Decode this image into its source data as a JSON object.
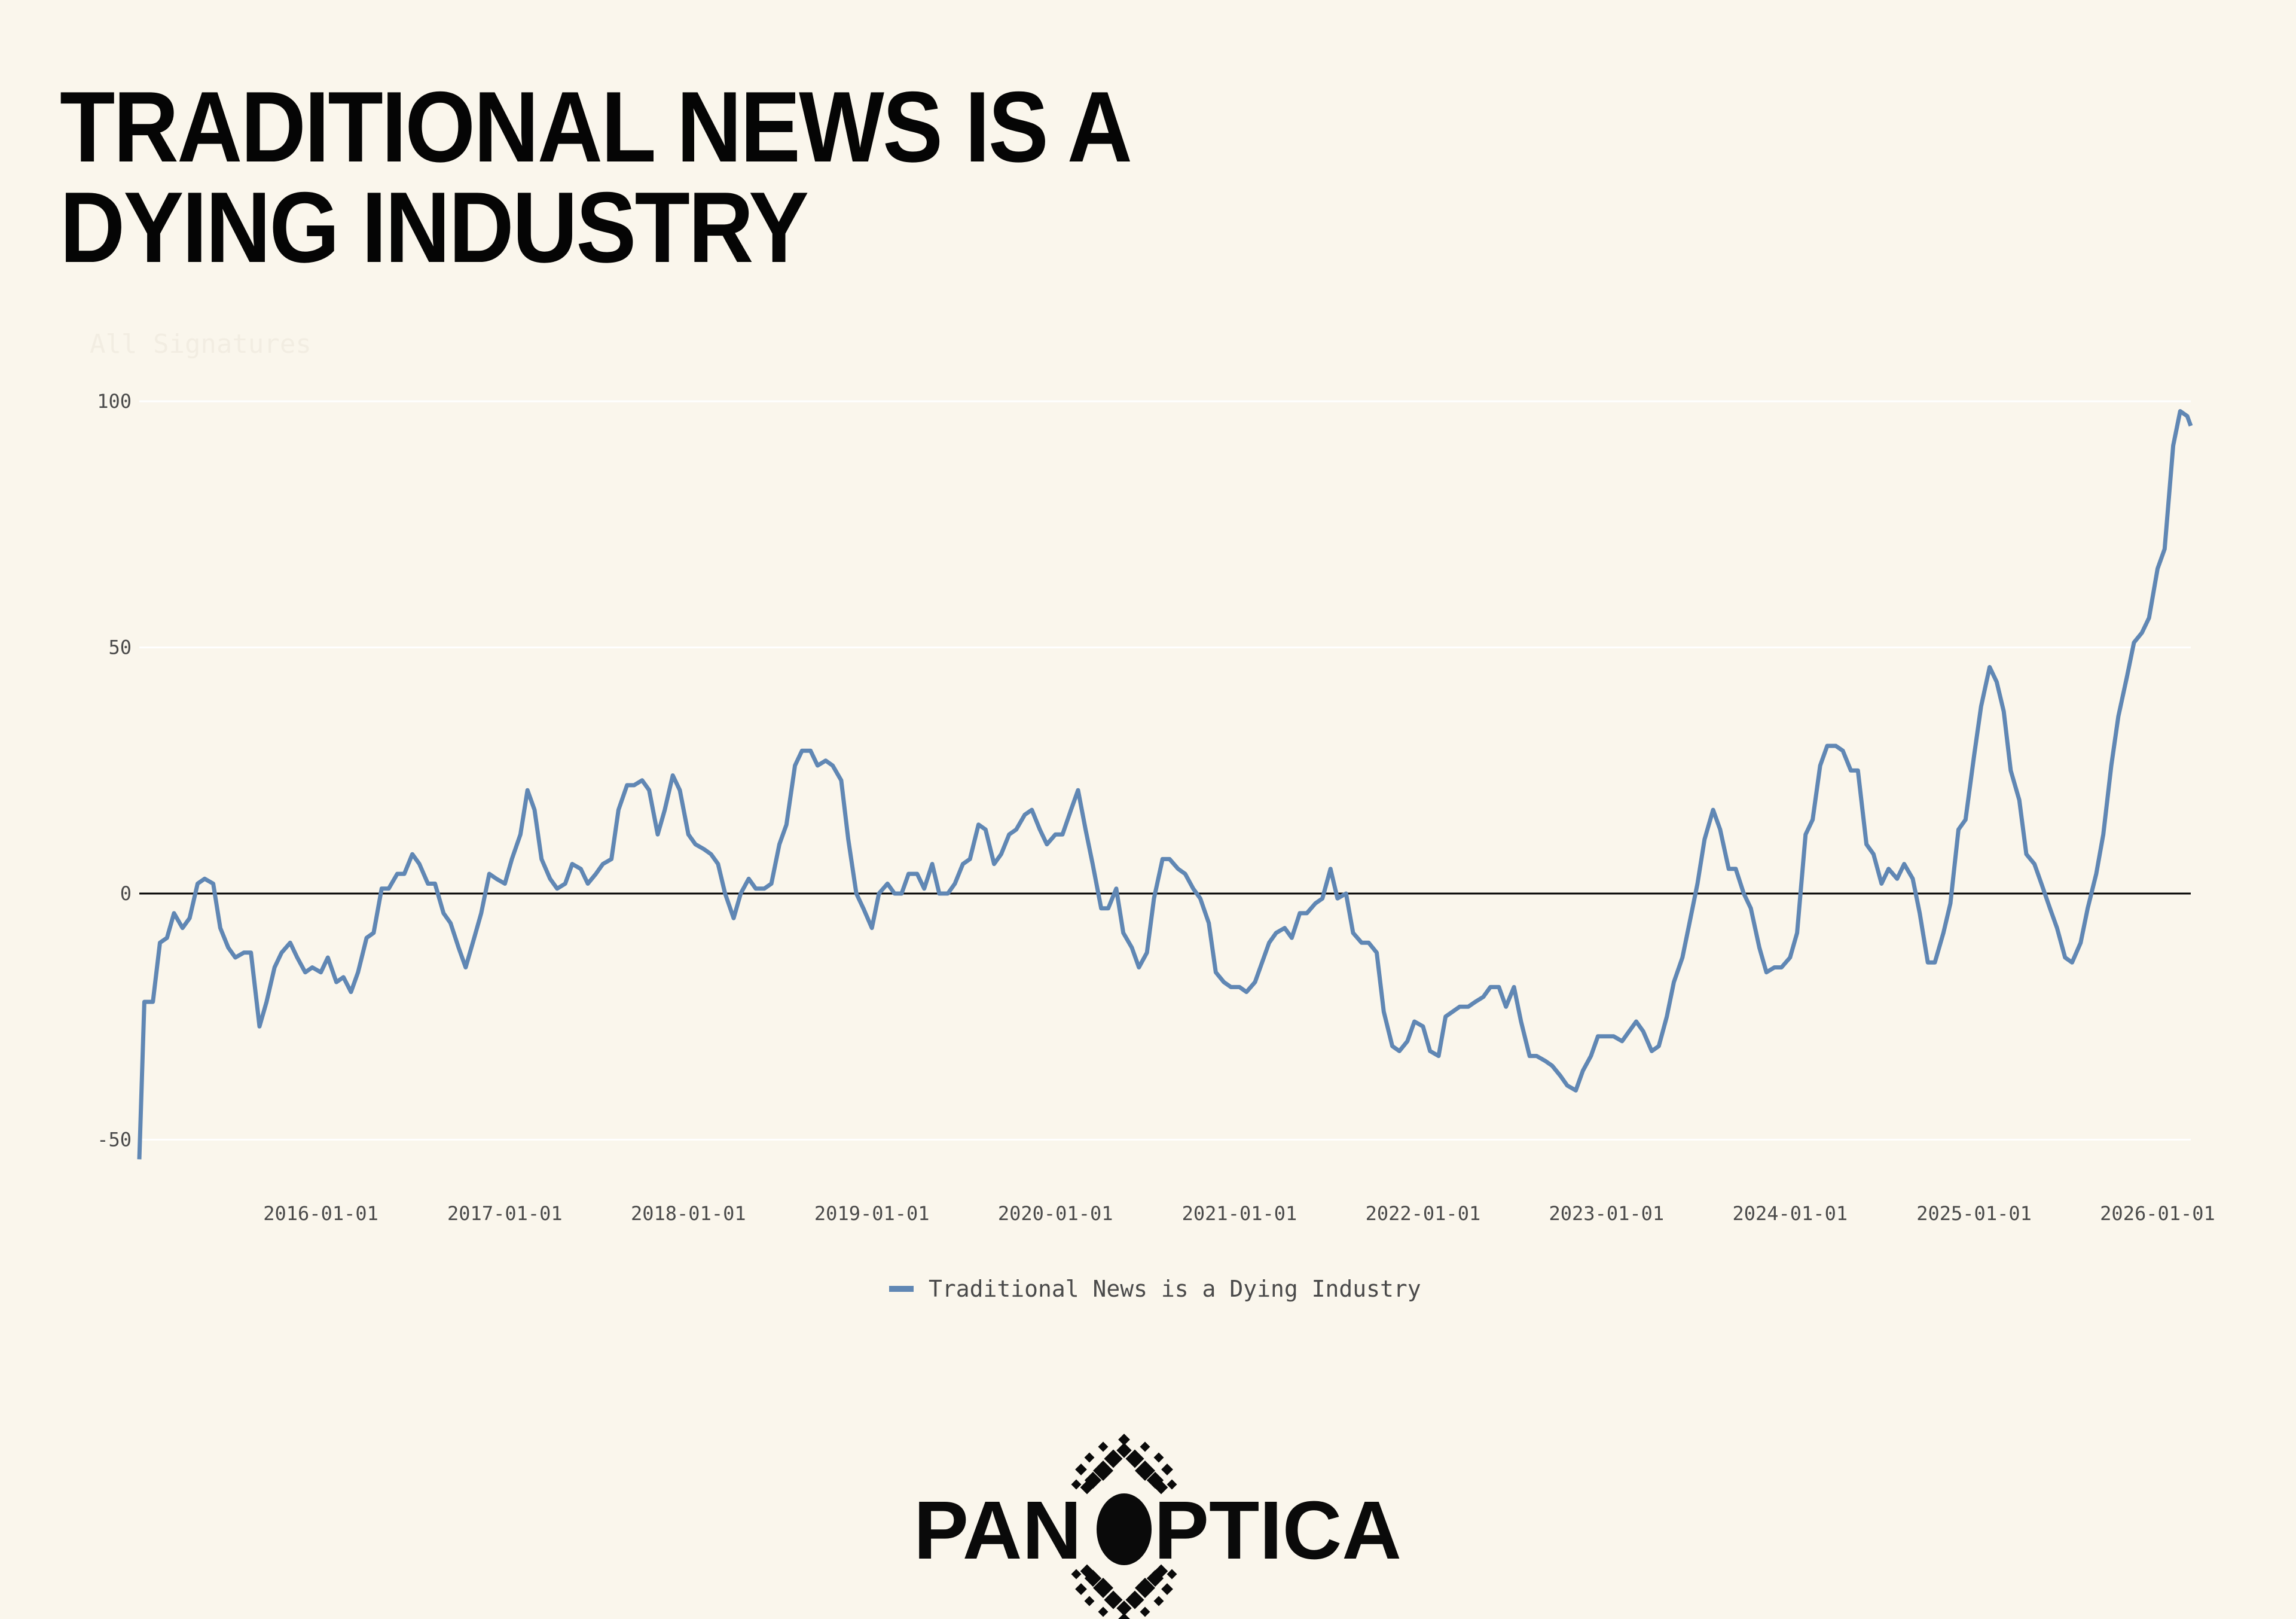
{
  "title_lines": [
    "TRADITIONAL NEWS IS A",
    "DYING INDUSTRY"
  ],
  "subtitle": "All Signatures",
  "logo_text": "PANOPTICA",
  "colors": {
    "background": "#faf6ec",
    "series": "#6087b4",
    "zero_line": "#000000",
    "grid": "#ffffff"
  },
  "chart_data": {
    "type": "line",
    "title": "TRADITIONAL NEWS IS A DYING INDUSTRY",
    "xlabel": "",
    "ylabel": "",
    "ylim": [
      -55,
      100
    ],
    "yticks": [
      100,
      50,
      0,
      -50
    ],
    "ytick_labels": [
      "100",
      "50",
      "0",
      "-50"
    ],
    "xticks": [
      "2016-01-01",
      "2017-01-01",
      "2018-01-01",
      "2019-01-01",
      "2020-01-01",
      "2021-01-01",
      "2022-01-01",
      "2023-01-01",
      "2024-01-01",
      "2025-01-01",
      "2026-01-01"
    ],
    "grid": "horizontal",
    "zero_line": true,
    "legend": "bottom-center",
    "series": [
      {
        "name": "Traditional News is a Dying Industry",
        "color": "#6087b4",
        "points": [
          [
            "2015-01-05",
            -54
          ],
          [
            "2015-01-15",
            -22
          ],
          [
            "2015-02-01",
            -22
          ],
          [
            "2015-02-15",
            -10
          ],
          [
            "2015-03-01",
            -9
          ],
          [
            "2015-03-15",
            -4
          ],
          [
            "2015-04-01",
            -7
          ],
          [
            "2015-04-15",
            -5
          ],
          [
            "2015-05-01",
            2
          ],
          [
            "2015-05-15",
            3
          ],
          [
            "2015-06-01",
            2
          ],
          [
            "2015-06-15",
            -7
          ],
          [
            "2015-07-01",
            -11
          ],
          [
            "2015-07-15",
            -13
          ],
          [
            "2015-08-01",
            -12
          ],
          [
            "2015-08-15",
            -12
          ],
          [
            "2015-09-01",
            -27
          ],
          [
            "2015-09-15",
            -22
          ],
          [
            "2015-10-01",
            -15
          ],
          [
            "2015-10-15",
            -12
          ],
          [
            "2015-11-01",
            -10
          ],
          [
            "2015-11-15",
            -13
          ],
          [
            "2015-12-01",
            -16
          ],
          [
            "2015-12-15",
            -15
          ],
          [
            "2016-01-01",
            -16
          ],
          [
            "2016-01-15",
            -13
          ],
          [
            "2016-02-01",
            -18
          ],
          [
            "2016-02-15",
            -17
          ],
          [
            "2016-03-01",
            -20
          ],
          [
            "2016-03-15",
            -16
          ],
          [
            "2016-04-01",
            -9
          ],
          [
            "2016-04-15",
            -8
          ],
          [
            "2016-05-01",
            1
          ],
          [
            "2016-05-15",
            1
          ],
          [
            "2016-06-01",
            4
          ],
          [
            "2016-06-15",
            4
          ],
          [
            "2016-07-01",
            8
          ],
          [
            "2016-07-15",
            6
          ],
          [
            "2016-08-01",
            2
          ],
          [
            "2016-08-15",
            2
          ],
          [
            "2016-09-01",
            -4
          ],
          [
            "2016-09-15",
            -6
          ],
          [
            "2016-10-01",
            -11
          ],
          [
            "2016-10-15",
            -15
          ],
          [
            "2016-11-01",
            -9
          ],
          [
            "2016-11-15",
            -4
          ],
          [
            "2016-12-01",
            4
          ],
          [
            "2016-12-15",
            3
          ],
          [
            "2017-01-01",
            2
          ],
          [
            "2017-01-15",
            7
          ],
          [
            "2017-02-01",
            12
          ],
          [
            "2017-02-15",
            21
          ],
          [
            "2017-03-01",
            17
          ],
          [
            "2017-03-15",
            7
          ],
          [
            "2017-04-01",
            3
          ],
          [
            "2017-04-15",
            1
          ],
          [
            "2017-05-01",
            2
          ],
          [
            "2017-05-15",
            6
          ],
          [
            "2017-06-01",
            5
          ],
          [
            "2017-06-15",
            2
          ],
          [
            "2017-07-01",
            4
          ],
          [
            "2017-07-15",
            6
          ],
          [
            "2017-08-01",
            7
          ],
          [
            "2017-08-15",
            17
          ],
          [
            "2017-09-01",
            22
          ],
          [
            "2017-09-15",
            22
          ],
          [
            "2017-10-01",
            23
          ],
          [
            "2017-10-15",
            21
          ],
          [
            "2017-11-01",
            12
          ],
          [
            "2017-11-15",
            17
          ],
          [
            "2017-12-01",
            24
          ],
          [
            "2017-12-15",
            21
          ],
          [
            "2018-01-01",
            12
          ],
          [
            "2018-01-15",
            10
          ],
          [
            "2018-02-01",
            9
          ],
          [
            "2018-02-15",
            8
          ],
          [
            "2018-03-01",
            6
          ],
          [
            "2018-03-15",
            0
          ],
          [
            "2018-04-01",
            -5
          ],
          [
            "2018-04-15",
            0
          ],
          [
            "2018-05-01",
            3
          ],
          [
            "2018-05-15",
            1
          ],
          [
            "2018-06-01",
            1
          ],
          [
            "2018-06-15",
            2
          ],
          [
            "2018-07-01",
            10
          ],
          [
            "2018-07-15",
            14
          ],
          [
            "2018-08-01",
            26
          ],
          [
            "2018-08-15",
            29
          ],
          [
            "2018-09-01",
            29
          ],
          [
            "2018-09-15",
            26
          ],
          [
            "2018-10-01",
            27
          ],
          [
            "2018-10-15",
            26
          ],
          [
            "2018-11-01",
            23
          ],
          [
            "2018-11-15",
            11
          ],
          [
            "2018-12-01",
            0
          ],
          [
            "2018-12-15",
            -3
          ],
          [
            "2019-01-01",
            -7
          ],
          [
            "2019-01-15",
            0
          ],
          [
            "2019-02-01",
            2
          ],
          [
            "2019-02-15",
            0
          ],
          [
            "2019-03-01",
            0
          ],
          [
            "2019-03-15",
            4
          ],
          [
            "2019-04-01",
            4
          ],
          [
            "2019-04-15",
            1
          ],
          [
            "2019-05-01",
            6
          ],
          [
            "2019-05-15",
            0
          ],
          [
            "2019-06-01",
            0
          ],
          [
            "2019-06-15",
            2
          ],
          [
            "2019-07-01",
            6
          ],
          [
            "2019-07-15",
            7
          ],
          [
            "2019-08-01",
            14
          ],
          [
            "2019-08-15",
            13
          ],
          [
            "2019-09-01",
            6
          ],
          [
            "2019-09-15",
            8
          ],
          [
            "2019-10-01",
            12
          ],
          [
            "2019-10-15",
            13
          ],
          [
            "2019-11-01",
            16
          ],
          [
            "2019-11-15",
            17
          ],
          [
            "2019-12-01",
            13
          ],
          [
            "2019-12-15",
            10
          ],
          [
            "2020-01-01",
            12
          ],
          [
            "2020-01-15",
            12
          ],
          [
            "2020-02-01",
            17
          ],
          [
            "2020-02-15",
            21
          ],
          [
            "2020-03-01",
            13
          ],
          [
            "2020-03-15",
            6
          ],
          [
            "2020-04-01",
            -3
          ],
          [
            "2020-04-15",
            -3
          ],
          [
            "2020-05-01",
            1
          ],
          [
            "2020-05-15",
            -8
          ],
          [
            "2020-06-01",
            -11
          ],
          [
            "2020-06-15",
            -15
          ],
          [
            "2020-07-01",
            -12
          ],
          [
            "2020-07-15",
            -1
          ],
          [
            "2020-08-01",
            7
          ],
          [
            "2020-08-15",
            7
          ],
          [
            "2020-09-01",
            5
          ],
          [
            "2020-09-15",
            4
          ],
          [
            "2020-10-01",
            1
          ],
          [
            "2020-10-15",
            -1
          ],
          [
            "2020-11-01",
            -6
          ],
          [
            "2020-11-15",
            -16
          ],
          [
            "2020-12-01",
            -18
          ],
          [
            "2020-12-15",
            -19
          ],
          [
            "2021-01-01",
            -19
          ],
          [
            "2021-01-15",
            -20
          ],
          [
            "2021-02-01",
            -18
          ],
          [
            "2021-02-15",
            -14
          ],
          [
            "2021-03-01",
            -10
          ],
          [
            "2021-03-15",
            -8
          ],
          [
            "2021-04-01",
            -7
          ],
          [
            "2021-04-15",
            -9
          ],
          [
            "2021-05-01",
            -4
          ],
          [
            "2021-05-15",
            -4
          ],
          [
            "2021-06-01",
            -2
          ],
          [
            "2021-06-15",
            -1
          ],
          [
            "2021-07-01",
            5
          ],
          [
            "2021-07-15",
            -1
          ],
          [
            "2021-08-01",
            0
          ],
          [
            "2021-08-15",
            -8
          ],
          [
            "2021-09-01",
            -10
          ],
          [
            "2021-09-15",
            -10
          ],
          [
            "2021-10-01",
            -12
          ],
          [
            "2021-10-15",
            -24
          ],
          [
            "2021-11-01",
            -31
          ],
          [
            "2021-11-15",
            -32
          ],
          [
            "2021-12-01",
            -30
          ],
          [
            "2021-12-15",
            -26
          ],
          [
            "2022-01-01",
            -27
          ],
          [
            "2022-01-15",
            -32
          ],
          [
            "2022-02-01",
            -33
          ],
          [
            "2022-02-15",
            -25
          ],
          [
            "2022-03-01",
            -24
          ],
          [
            "2022-03-15",
            -23
          ],
          [
            "2022-04-01",
            -23
          ],
          [
            "2022-04-15",
            -22
          ],
          [
            "2022-05-01",
            -21
          ],
          [
            "2022-05-15",
            -19
          ],
          [
            "2022-06-01",
            -19
          ],
          [
            "2022-06-15",
            -23
          ],
          [
            "2022-07-01",
            -19
          ],
          [
            "2022-07-15",
            -26
          ],
          [
            "2022-08-01",
            -33
          ],
          [
            "2022-08-15",
            -33
          ],
          [
            "2022-09-01",
            -34
          ],
          [
            "2022-09-15",
            -35
          ],
          [
            "2022-10-01",
            -37
          ],
          [
            "2022-10-15",
            -39
          ],
          [
            "2022-11-01",
            -40
          ],
          [
            "2022-11-15",
            -36
          ],
          [
            "2022-12-01",
            -33
          ],
          [
            "2022-12-15",
            -29
          ],
          [
            "2023-01-01",
            -29
          ],
          [
            "2023-01-15",
            -29
          ],
          [
            "2023-02-01",
            -30
          ],
          [
            "2023-02-15",
            -28
          ],
          [
            "2023-03-01",
            -26
          ],
          [
            "2023-03-15",
            -28
          ],
          [
            "2023-04-01",
            -32
          ],
          [
            "2023-04-15",
            -31
          ],
          [
            "2023-05-01",
            -25
          ],
          [
            "2023-05-15",
            -18
          ],
          [
            "2023-06-01",
            -13
          ],
          [
            "2023-06-15",
            -6
          ],
          [
            "2023-07-01",
            2
          ],
          [
            "2023-07-15",
            11
          ],
          [
            "2023-08-01",
            17
          ],
          [
            "2023-08-15",
            13
          ],
          [
            "2023-09-01",
            5
          ],
          [
            "2023-09-15",
            5
          ],
          [
            "2023-10-01",
            0
          ],
          [
            "2023-10-15",
            -3
          ],
          [
            "2023-11-01",
            -11
          ],
          [
            "2023-11-15",
            -16
          ],
          [
            "2023-12-01",
            -15
          ],
          [
            "2023-12-15",
            -15
          ],
          [
            "2024-01-01",
            -13
          ],
          [
            "2024-01-15",
            -8
          ],
          [
            "2024-02-01",
            12
          ],
          [
            "2024-02-15",
            15
          ],
          [
            "2024-03-01",
            26
          ],
          [
            "2024-03-15",
            30
          ],
          [
            "2024-04-01",
            30
          ],
          [
            "2024-04-15",
            29
          ],
          [
            "2024-05-01",
            25
          ],
          [
            "2024-05-15",
            25
          ],
          [
            "2024-06-01",
            10
          ],
          [
            "2024-06-15",
            8
          ],
          [
            "2024-07-01",
            2
          ],
          [
            "2024-07-15",
            5
          ],
          [
            "2024-08-01",
            3
          ],
          [
            "2024-08-15",
            6
          ],
          [
            "2024-09-01",
            3
          ],
          [
            "2024-09-15",
            -4
          ],
          [
            "2024-10-01",
            -14
          ],
          [
            "2024-10-15",
            -14
          ],
          [
            "2024-11-01",
            -8
          ],
          [
            "2024-11-15",
            -2
          ],
          [
            "2024-12-01",
            13
          ],
          [
            "2024-12-15",
            15
          ],
          [
            "2025-01-01",
            28
          ],
          [
            "2025-01-15",
            38
          ],
          [
            "2025-02-01",
            46
          ],
          [
            "2025-02-15",
            43
          ],
          [
            "2025-03-01",
            37
          ],
          [
            "2025-03-15",
            25
          ],
          [
            "2025-04-01",
            19
          ],
          [
            "2025-04-15",
            8
          ],
          [
            "2025-05-01",
            6
          ],
          [
            "2025-05-15",
            2
          ],
          [
            "2025-06-01",
            -3
          ],
          [
            "2025-06-15",
            -7
          ],
          [
            "2025-07-01",
            -13
          ],
          [
            "2025-07-15",
            -14
          ],
          [
            "2025-08-01",
            -10
          ],
          [
            "2025-08-15",
            -3
          ],
          [
            "2025-09-01",
            4
          ],
          [
            "2025-09-15",
            12
          ],
          [
            "2025-10-01",
            26
          ],
          [
            "2025-10-15",
            36
          ],
          [
            "2025-11-01",
            44
          ],
          [
            "2025-11-15",
            51
          ],
          [
            "2025-12-01",
            53
          ],
          [
            "2025-12-15",
            56
          ],
          [
            "2026-01-01",
            66
          ],
          [
            "2026-01-15",
            70
          ],
          [
            "2026-02-01",
            91
          ],
          [
            "2026-02-15",
            98
          ],
          [
            "2026-03-01",
            97
          ],
          [
            "2026-03-08",
            95
          ]
        ]
      }
    ]
  }
}
